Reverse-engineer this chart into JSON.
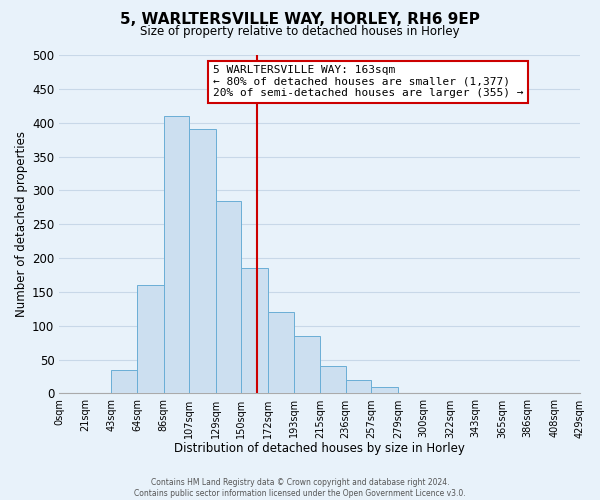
{
  "title": "5, WARLTERSVILLE WAY, HORLEY, RH6 9EP",
  "subtitle": "Size of property relative to detached houses in Horley",
  "xlabel": "Distribution of detached houses by size in Horley",
  "ylabel": "Number of detached properties",
  "bin_edges": [
    0,
    21,
    43,
    64,
    86,
    107,
    129,
    150,
    172,
    193,
    215,
    236,
    257,
    279,
    300,
    322,
    343,
    365,
    386,
    408,
    429
  ],
  "bin_labels": [
    "0sqm",
    "21sqm",
    "43sqm",
    "64sqm",
    "86sqm",
    "107sqm",
    "129sqm",
    "150sqm",
    "172sqm",
    "193sqm",
    "215sqm",
    "236sqm",
    "257sqm",
    "279sqm",
    "300sqm",
    "322sqm",
    "343sqm",
    "365sqm",
    "386sqm",
    "408sqm",
    "429sqm"
  ],
  "bar_heights": [
    0,
    0,
    35,
    160,
    410,
    390,
    285,
    185,
    120,
    85,
    40,
    20,
    10,
    0,
    0,
    0,
    0,
    0,
    0,
    0
  ],
  "bar_color": "#ccdff0",
  "bar_edge_color": "#6aaed6",
  "vline_x": 163,
  "vline_color": "#cc0000",
  "ylim": [
    0,
    500
  ],
  "yticks": [
    0,
    50,
    100,
    150,
    200,
    250,
    300,
    350,
    400,
    450,
    500
  ],
  "annotation_title": "5 WARLTERSVILLE WAY: 163sqm",
  "annotation_line1": "← 80% of detached houses are smaller (1,377)",
  "annotation_line2": "20% of semi-detached houses are larger (355) →",
  "annotation_box_color": "#ffffff",
  "annotation_box_edge": "#cc0000",
  "grid_color": "#c8d8e8",
  "background_color": "#e8f2fa",
  "footer1": "Contains HM Land Registry data © Crown copyright and database right 2024.",
  "footer2": "Contains public sector information licensed under the Open Government Licence v3.0."
}
